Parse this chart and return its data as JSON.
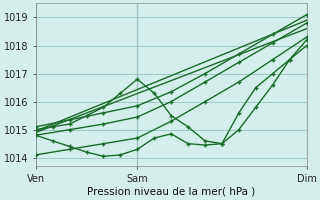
{
  "title": "Pression niveau de la mer( hPa )",
  "bg_color": "#d4eeec",
  "grid_color": "#9ec8c4",
  "line_color": "#1a6b2a",
  "ylim": [
    1013.7,
    1019.5
  ],
  "xlim": [
    0,
    48
  ],
  "xticks": [
    0,
    18,
    48
  ],
  "xtick_labels": [
    "Ven",
    "Sam",
    "Dim"
  ],
  "yticks": [
    1014,
    1015,
    1016,
    1017,
    1018,
    1019
  ],
  "vlines": [
    0,
    18,
    48
  ],
  "series": [
    {
      "x": [
        0,
        6,
        12,
        18,
        24,
        30,
        36,
        42,
        48
      ],
      "y": [
        1015.1,
        1015.35,
        1015.6,
        1015.85,
        1016.35,
        1017.0,
        1017.7,
        1018.4,
        1019.1
      ],
      "marker": "+"
    },
    {
      "x": [
        0,
        6,
        12,
        18,
        24,
        30,
        36,
        42,
        48
      ],
      "y": [
        1014.8,
        1015.0,
        1015.2,
        1015.45,
        1016.0,
        1016.7,
        1017.4,
        1018.1,
        1018.8
      ],
      "marker": "+"
    },
    {
      "x": [
        0,
        6,
        12,
        18,
        24,
        30,
        36,
        42,
        48
      ],
      "y": [
        1014.1,
        1014.3,
        1014.5,
        1014.7,
        1015.3,
        1016.0,
        1016.7,
        1017.5,
        1018.3
      ],
      "marker": "+"
    },
    {
      "x": [
        0,
        3,
        6,
        9,
        12,
        15,
        18,
        21,
        24,
        27,
        30,
        33,
        36,
        39,
        42,
        45,
        48
      ],
      "y": [
        1015.0,
        1015.1,
        1015.2,
        1015.5,
        1015.8,
        1016.3,
        1016.8,
        1016.3,
        1015.5,
        1015.1,
        1014.6,
        1014.5,
        1015.6,
        1016.5,
        1017.0,
        1017.5,
        1018.0
      ],
      "marker": "+"
    },
    {
      "x": [
        0,
        3,
        6,
        9,
        12,
        15,
        18,
        21,
        24,
        27,
        30,
        33,
        36,
        39,
        42,
        45,
        48
      ],
      "y": [
        1014.8,
        1014.6,
        1014.4,
        1014.2,
        1014.05,
        1014.1,
        1014.3,
        1014.7,
        1014.85,
        1014.5,
        1014.45,
        1014.5,
        1015.0,
        1015.8,
        1016.6,
        1017.5,
        1018.2
      ],
      "marker": "+"
    },
    {
      "x": [
        0,
        48
      ],
      "y": [
        1014.9,
        1018.6
      ],
      "marker": null
    },
    {
      "x": [
        0,
        48
      ],
      "y": [
        1014.95,
        1018.9
      ],
      "marker": null
    }
  ]
}
